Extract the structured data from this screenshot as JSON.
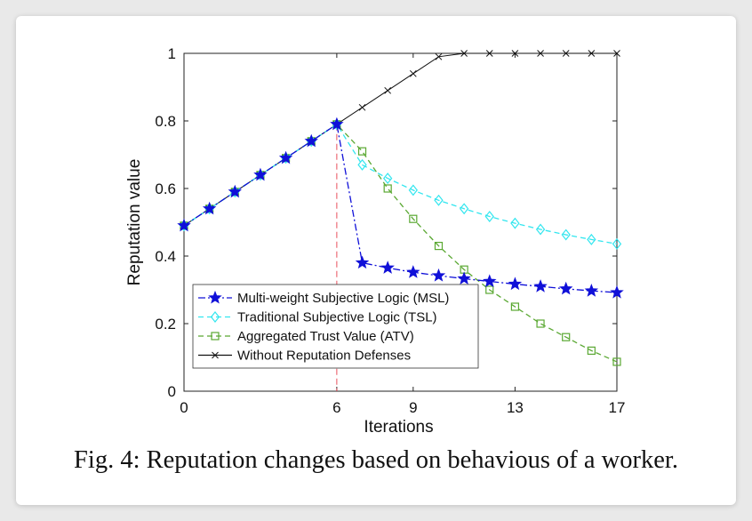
{
  "caption": "Fig. 4: Reputation changes based on behavious of a worker.",
  "chart_data": {
    "type": "line",
    "xlabel": "Iterations",
    "ylabel": "Reputation value",
    "xlim": [
      0,
      17
    ],
    "ylim": [
      0,
      1
    ],
    "xticks": [
      0,
      6,
      9,
      13,
      17
    ],
    "yticks": [
      0,
      0.2,
      0.4,
      0.6,
      0.8,
      1
    ],
    "ytick_labels": [
      "0",
      "0.2",
      "0.4",
      "0.6",
      "0.8",
      "1"
    ],
    "grid": false,
    "legend_position": "bottom-left",
    "vline": {
      "x": 6,
      "color": "#e8505b",
      "style": "dashed"
    },
    "series": [
      {
        "name": "Multi-weight Subjective Logic (MSL)",
        "color": "#1010d8",
        "dash": "dashdot",
        "marker": "star",
        "x": [
          0,
          1,
          2,
          3,
          4,
          5,
          6,
          7,
          8,
          9,
          10,
          11,
          12,
          13,
          14,
          15,
          16,
          17
        ],
        "values": [
          0.49,
          0.54,
          0.59,
          0.64,
          0.69,
          0.74,
          0.79,
          0.38,
          0.365,
          0.352,
          0.342,
          0.333,
          0.325,
          0.317,
          0.31,
          0.303,
          0.297,
          0.292
        ]
      },
      {
        "name": "Traditional Subjective Logic (TSL)",
        "color": "#33e6ef",
        "dash": "dashed",
        "marker": "diamond",
        "x": [
          0,
          1,
          2,
          3,
          4,
          5,
          6,
          7,
          8,
          9,
          10,
          11,
          12,
          13,
          14,
          15,
          16,
          17
        ],
        "values": [
          0.49,
          0.54,
          0.59,
          0.64,
          0.69,
          0.74,
          0.79,
          0.67,
          0.63,
          0.595,
          0.565,
          0.54,
          0.517,
          0.497,
          0.479,
          0.463,
          0.449,
          0.436
        ]
      },
      {
        "name": "Aggregated Trust Value (ATV)",
        "color": "#5aa832",
        "dash": "dashed",
        "marker": "square",
        "x": [
          0,
          1,
          2,
          3,
          4,
          5,
          6,
          7,
          8,
          9,
          10,
          11,
          12,
          13,
          14,
          15,
          16,
          17
        ],
        "values": [
          0.49,
          0.54,
          0.59,
          0.64,
          0.69,
          0.74,
          0.79,
          0.71,
          0.6,
          0.51,
          0.43,
          0.36,
          0.3,
          0.25,
          0.2,
          0.16,
          0.12,
          0.087
        ]
      },
      {
        "name": "Without Reputation Defenses",
        "color": "#111111",
        "dash": "solid",
        "marker": "x",
        "x": [
          0,
          1,
          2,
          3,
          4,
          5,
          6,
          7,
          8,
          9,
          10,
          11,
          12,
          13,
          14,
          15,
          16,
          17
        ],
        "values": [
          0.49,
          0.54,
          0.59,
          0.64,
          0.69,
          0.74,
          0.79,
          0.84,
          0.89,
          0.94,
          0.99,
          1,
          1,
          1,
          1,
          1,
          1,
          1
        ]
      }
    ]
  }
}
